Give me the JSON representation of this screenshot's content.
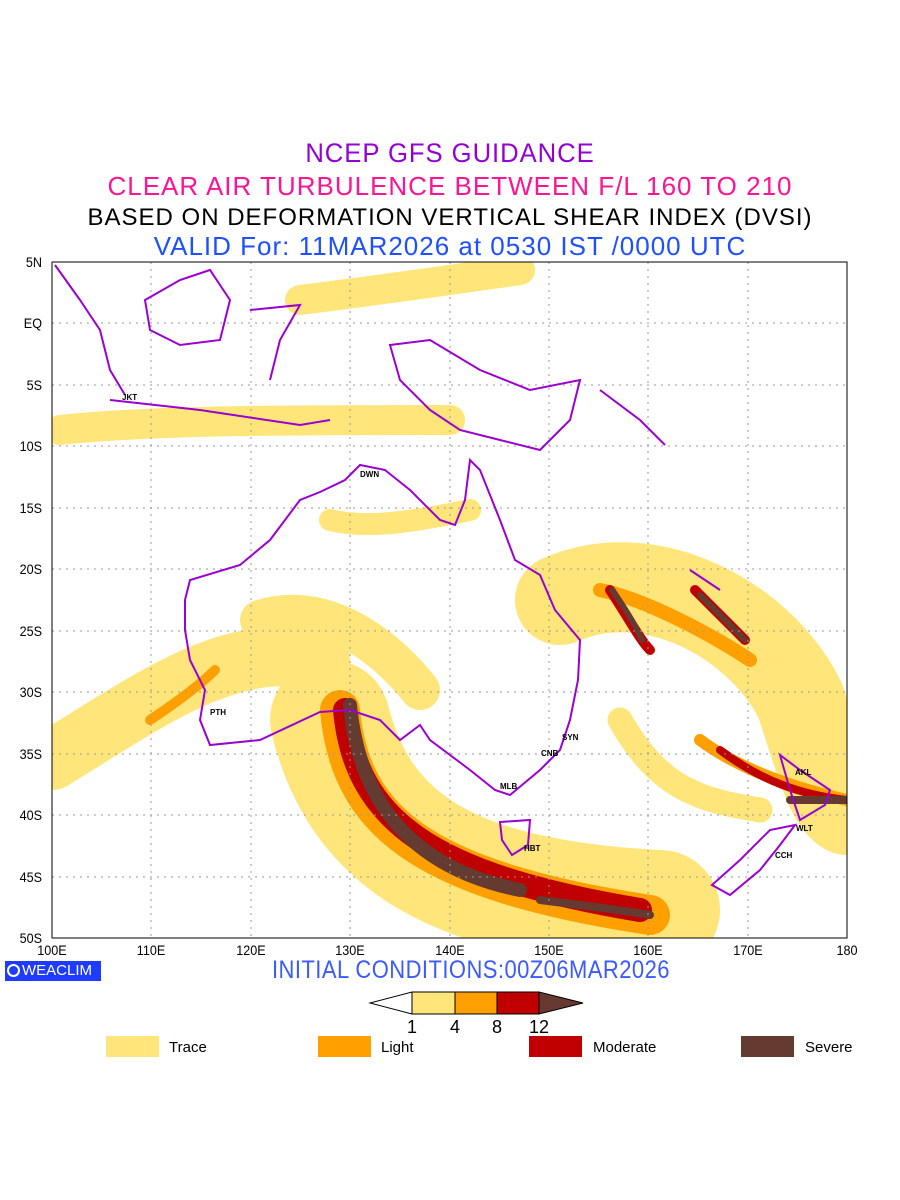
{
  "title": {
    "line1": "NCEP GFS GUIDANCE",
    "line2": "CLEAR AIR TURBULENCE BETWEEN F/L 160 TO 210",
    "line3": "BASED ON DEFORMATION VERTICAL SHEAR INDEX (DVSI)",
    "line4": "VALID For: 11MAR2026 at 0530 IST /0000 UTC"
  },
  "axes": {
    "lat_labels": [
      "5N",
      "EQ",
      "5S",
      "10S",
      "15S",
      "20S",
      "25S",
      "30S",
      "35S",
      "40S",
      "45S",
      "50S"
    ],
    "lon_labels": [
      "100E",
      "110E",
      "120E",
      "130E",
      "140E",
      "150E",
      "160E",
      "170E",
      "180"
    ]
  },
  "cities": [
    {
      "code": "JKT"
    },
    {
      "code": "DWN"
    },
    {
      "code": "PTH"
    },
    {
      "code": "SYN"
    },
    {
      "code": "CNB"
    },
    {
      "code": "MLB"
    },
    {
      "code": "HBT"
    },
    {
      "code": "AKL"
    },
    {
      "code": "WLT"
    },
    {
      "code": "CCH"
    }
  ],
  "footer": {
    "logo": "WEACLIM",
    "initial_conditions": "INITIAL CONDITIONS:00Z06MAR2026"
  },
  "colorbar": {
    "thresholds": [
      "1",
      "4",
      "8",
      "12"
    ],
    "colors": [
      "#ffffff",
      "#ffe57a",
      "#ffa000",
      "#c00000",
      "#653a30"
    ]
  },
  "legend": [
    {
      "label": "Trace",
      "color": "#ffe57a"
    },
    {
      "label": "Light",
      "color": "#ffa000"
    },
    {
      "label": "Moderate",
      "color": "#c00000"
    },
    {
      "label": "Severe",
      "color": "#653a30"
    }
  ],
  "colors": {
    "coastline": "#9a00d0"
  }
}
